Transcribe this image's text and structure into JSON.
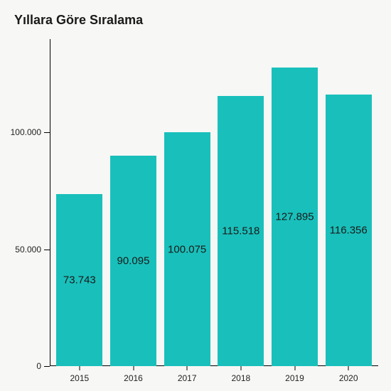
{
  "chart": {
    "type": "bar",
    "title": "Yıllara Göre Sıralama",
    "title_fontsize": 18,
    "title_fontweight": 700,
    "background_color": "#f7f7f5",
    "bar_color": "#19c0bb",
    "text_color": "#1a1a1a",
    "axis_color": "#000000",
    "label_fontsize": 12,
    "bar_label_fontsize": 15,
    "bar_width": 0.86,
    "ylim": [
      0,
      140000
    ],
    "y_ticks": [
      0,
      50000,
      100000
    ],
    "y_tick_labels": [
      "0",
      "50.000",
      "100.000"
    ],
    "categories": [
      "2015",
      "2016",
      "2017",
      "2018",
      "2019",
      "2020"
    ],
    "values": [
      73743,
      90095,
      100075,
      115518,
      127895,
      116356
    ],
    "value_labels": [
      "73.743",
      "90.095",
      "100.075",
      "115.518",
      "127.895",
      "116.356"
    ]
  }
}
